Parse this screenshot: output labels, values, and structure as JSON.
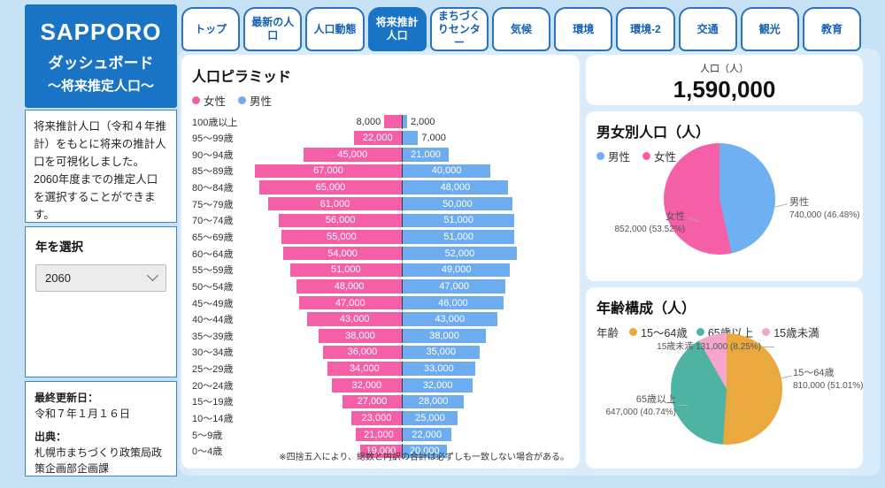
{
  "sidebar": {
    "title_line1": "SAPPORO",
    "title_line2": "ダッシュボード",
    "title_line3": "～将来推定人口～",
    "description": "将来推計人口（令和４年推計）をもとに将来の推計人口を可視化しました。2060年度までの推定人口を選択することができます。",
    "year_select": {
      "label": "年を選択",
      "value": "2060"
    },
    "meta": {
      "updated_label": "最終更新日：",
      "updated_value": "令和７年１月１６日",
      "source_label": "出典：",
      "source_value": "札幌市まちづくり政策局政策企画部企画課"
    }
  },
  "header_tabs": [
    {
      "label": "トップ",
      "active": false
    },
    {
      "label": "最新の人口",
      "active": false
    },
    {
      "label": "人口動態",
      "active": false
    },
    {
      "label": "将来推計人口",
      "active": true
    },
    {
      "label": "まちづくりセンター",
      "active": false
    },
    {
      "label": "気候",
      "active": false
    },
    {
      "label": "環境",
      "active": false
    },
    {
      "label": "環境-2",
      "active": false
    },
    {
      "label": "交通",
      "active": false
    },
    {
      "label": "観光",
      "active": false
    },
    {
      "label": "教育",
      "active": false
    }
  ],
  "panels": {
    "population_total": {
      "label": "人口（人）",
      "value": "1,590,000"
    },
    "pyramid": {
      "title": "人口ピラミッド",
      "note": "※四捨五入により、総数と内訳の合計は必ずしも一致しない場合がある。"
    },
    "gender": {
      "title": "男女別人口（人）"
    },
    "age": {
      "title": "年齢構成（人）",
      "legend_prefix": "年齢"
    }
  },
  "chart_data": [
    {
      "type": "bar",
      "name": "population-pyramid",
      "title": "人口ピラミッド",
      "orientation": "horizontal-pyramid",
      "categories": [
        "100歳以上",
        "95～99歳",
        "90～94歳",
        "85～89歳",
        "80～84歳",
        "75～79歳",
        "70～74歳",
        "65～69歳",
        "60～64歳",
        "55～59歳",
        "50～54歳",
        "45～49歳",
        "40～44歳",
        "35～39歳",
        "30～34歳",
        "25～29歳",
        "20～24歳",
        "15～19歳",
        "10～14歳",
        "5～9歳",
        "0～4歳"
      ],
      "series": [
        {
          "name": "女性",
          "color": "#f55fa8",
          "values": [
            8000,
            22000,
            45000,
            67000,
            65000,
            61000,
            56000,
            55000,
            54000,
            51000,
            48000,
            47000,
            43000,
            38000,
            36000,
            34000,
            32000,
            27000,
            23000,
            21000,
            19000
          ]
        },
        {
          "name": "男性",
          "color": "#6eacf0",
          "values": [
            2000,
            7000,
            21000,
            40000,
            48000,
            50000,
            51000,
            51000,
            52000,
            49000,
            47000,
            46000,
            43000,
            38000,
            35000,
            33000,
            32000,
            28000,
            25000,
            22000,
            20000
          ]
        }
      ],
      "xmax": 67000,
      "outside_label_threshold": 10000
    },
    {
      "type": "pie",
      "name": "gender-population",
      "title": "男女別人口（人）",
      "slices": [
        {
          "label": "男性",
          "value": 740000,
          "pct": 46.48,
          "display": "740,000 (46.48%)",
          "color": "#6eb0f1"
        },
        {
          "label": "女性",
          "value": 852000,
          "pct": 53.52,
          "display": "852,000 (53.52%)",
          "color": "#f55fa8"
        }
      ]
    },
    {
      "type": "pie",
      "name": "age-composition",
      "title": "年齢構成（人）",
      "slices": [
        {
          "label": "15～64歳",
          "value": 810000,
          "pct": 51.01,
          "display": "810,000 (51.01%)",
          "color": "#e9a93f"
        },
        {
          "label": "65歳以上",
          "value": 647000,
          "pct": 40.74,
          "display": "647,000 (40.74%)",
          "color": "#4fb3a3"
        },
        {
          "label": "15歳未満",
          "value": 131000,
          "pct": 8.25,
          "display": "131,000 (8.25%)",
          "color": "#f6a6cd"
        }
      ]
    }
  ],
  "colors": {
    "page_bg": "#c7e2f5",
    "content_bg": "#d9ecfb",
    "brand_blue": "#1a74c6",
    "tab_text": "#1261b4",
    "female_pink": "#f55fa8",
    "male_blue": "#6eacf0",
    "age_working": "#e9a93f",
    "age_senior": "#4fb3a3",
    "age_child": "#f6a6cd"
  }
}
